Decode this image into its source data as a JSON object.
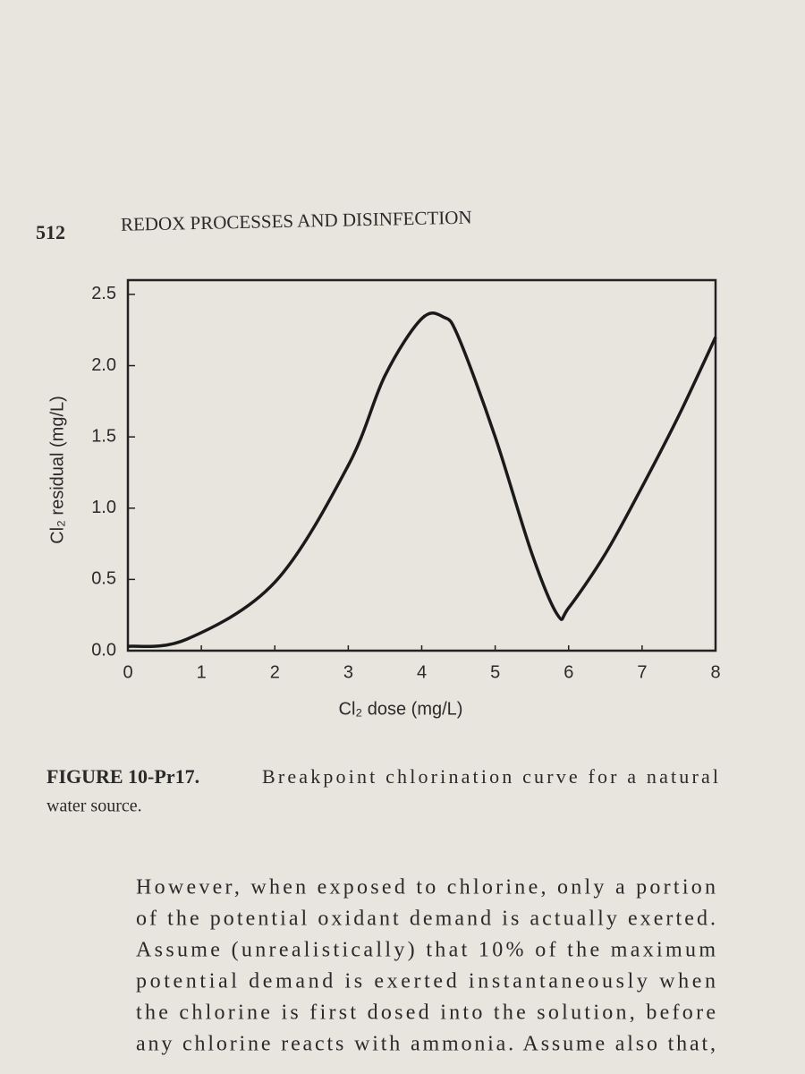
{
  "page": {
    "number": "512",
    "header": "REDOX PROCESSES AND DISINFECTION",
    "caption_label": "FIGURE 10-Pr17.",
    "caption_lines": [
      "Breakpoint chlorination curve for a natural",
      "water source."
    ],
    "body_lines": [
      "However, when exposed to chlorine, only a portion",
      "of the potential oxidant demand is actually exerted.",
      "Assume (unrealistically) that 10% of the maximum",
      "potential demand is exerted instantaneously when",
      "the chlorine is first dosed into the solution, before",
      "any chlorine reacts with ammonia. Assume also that,"
    ]
  },
  "chart_data": {
    "type": "line",
    "x_label": "Cl₂ dose (mg/L)",
    "y_label": "Cl₂ residual (mg/L)",
    "x": [
      0,
      0.8,
      2,
      3,
      3.5,
      4,
      4.3,
      4.5,
      5,
      5.5,
      5.85,
      6,
      6.5,
      7,
      7.5,
      8
    ],
    "values": [
      0.03,
      0.08,
      0.48,
      1.3,
      1.93,
      2.33,
      2.34,
      2.2,
      1.5,
      0.68,
      0.25,
      0.3,
      0.68,
      1.15,
      1.65,
      2.2
    ],
    "color": "#1a1a1a",
    "xlim": [
      0,
      8
    ],
    "ylim": [
      0,
      2.6
    ],
    "xticks": [
      0,
      1,
      2,
      3,
      4,
      5,
      6,
      7,
      8
    ],
    "yticks": [
      {
        "value": 0,
        "label": "0.0"
      },
      {
        "value": 0.5,
        "label": "0.5"
      },
      {
        "value": 1,
        "label": "1.0"
      },
      {
        "value": 1.5,
        "label": "1.5"
      },
      {
        "value": 2,
        "label": "2.0"
      },
      {
        "value": 2.5,
        "label": "2.5"
      }
    ]
  }
}
